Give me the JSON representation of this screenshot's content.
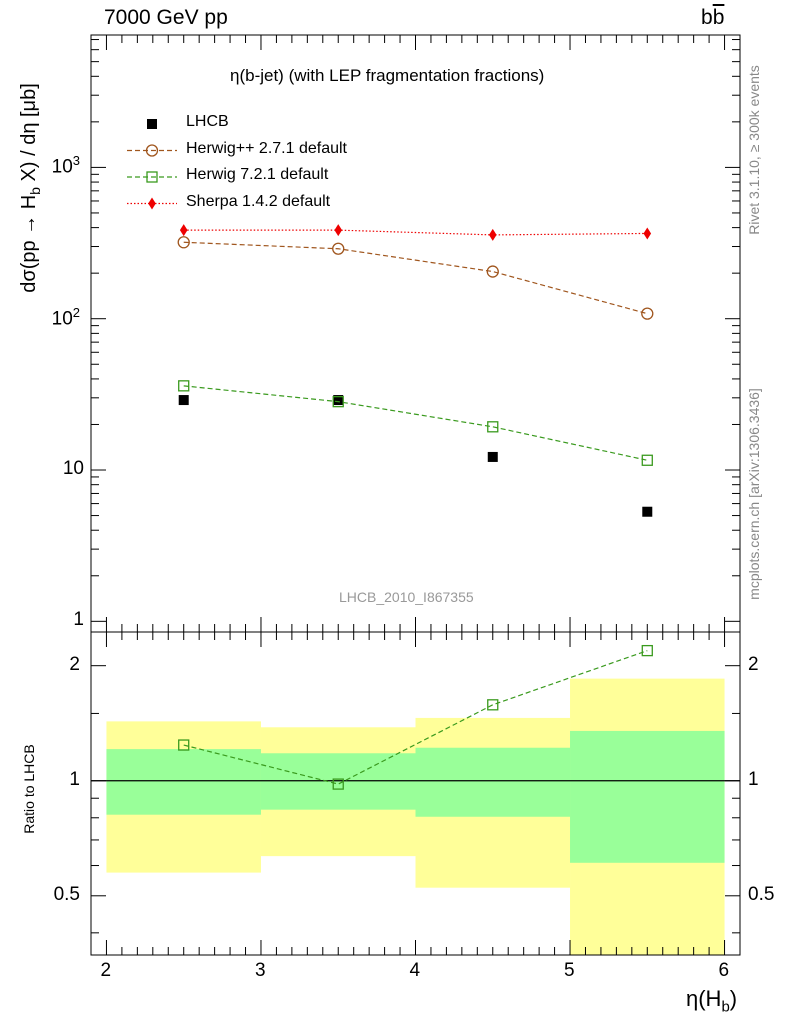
{
  "header": {
    "left": "7000 GeV pp",
    "right": "b",
    "right_bar": "b"
  },
  "side_text": {
    "rivet": "Rivet 3.1.10, ≥ 300k events",
    "mcplots": "mcplots.cern.ch [arXiv:1306.3436]"
  },
  "main": {
    "title": "η(b-jet) (with LEP fragmentation fractions)",
    "ylabel": "dσ(pp → H_b X) / dη [μb]",
    "watermark": "LHCB_2010_I867355",
    "yticks": [
      {
        "value": 1,
        "label": "1"
      },
      {
        "value": 10,
        "label": "10"
      },
      {
        "value": 100,
        "label": "10^2"
      },
      {
        "value": 1000,
        "label": "10^3"
      }
    ]
  },
  "ratio": {
    "ylabel": "Ratio to LHCB",
    "ytick_labels": [
      "0.5",
      "1",
      "2"
    ]
  },
  "xaxis": {
    "label": "η(H_b)",
    "tick_labels": [
      "2",
      "3",
      "4",
      "5",
      "6"
    ]
  },
  "colors": {
    "data": "#000000",
    "herwigpp": "#a0561e",
    "herwig7": "#3a9a1e",
    "sherpa": "#ee0000",
    "band_inner": "#99ff99",
    "band_outer": "#ffff99"
  },
  "chart_data": [
    {
      "type": "scatter",
      "panel": "main",
      "title": "η(b-jet) (with LEP fragmentation fractions)",
      "xlabel": "η(H_b)",
      "ylabel": "dσ(pp → H_b X) / dη [μb]",
      "xlim": [
        1.9,
        6.1
      ],
      "ylim": [
        0.85,
        7500
      ],
      "yscale": "log",
      "legend": "top-left",
      "x": [
        2.5,
        3.5,
        4.5,
        5.5
      ],
      "series": [
        {
          "name": "LHCB",
          "marker": "filled-square",
          "values": [
            29,
            29,
            12.2,
            5.3
          ]
        },
        {
          "name": "Herwig++ 2.7.1 default",
          "marker": "open-circle",
          "line": "dashed",
          "values": [
            320,
            290,
            205,
            108
          ]
        },
        {
          "name": "Herwig 7.2.1 default",
          "marker": "open-square",
          "line": "dashed",
          "values": [
            36,
            28.3,
            19.3,
            11.6
          ]
        },
        {
          "name": "Sherpa 1.4.2 default",
          "marker": "diamond",
          "line": "dotted",
          "values": [
            385,
            385,
            358,
            366
          ]
        }
      ]
    },
    {
      "type": "line",
      "panel": "ratio",
      "ylabel": "Ratio to LHCB",
      "xlim": [
        1.9,
        6.1
      ],
      "ylim": [
        0.35,
        2.45
      ],
      "yscale": "log",
      "bins": [
        {
          "lo": 2,
          "hi": 3,
          "outer": [
            0.575,
            1.43
          ],
          "inner": [
            0.815,
            1.21
          ]
        },
        {
          "lo": 3,
          "hi": 4,
          "outer": [
            0.635,
            1.38
          ],
          "inner": [
            0.84,
            1.18
          ]
        },
        {
          "lo": 4,
          "hi": 5,
          "outer": [
            0.525,
            1.46
          ],
          "inner": [
            0.805,
            1.22
          ]
        },
        {
          "lo": 5,
          "hi": 6,
          "outer": [
            0.35,
            1.85
          ],
          "inner": [
            0.61,
            1.35
          ]
        }
      ],
      "series": [
        {
          "name": "Herwig 7.2.1 default",
          "x": [
            2.5,
            3.5,
            4.5,
            5.5
          ],
          "values": [
            1.24,
            0.98,
            1.58,
            2.19
          ]
        }
      ]
    }
  ]
}
